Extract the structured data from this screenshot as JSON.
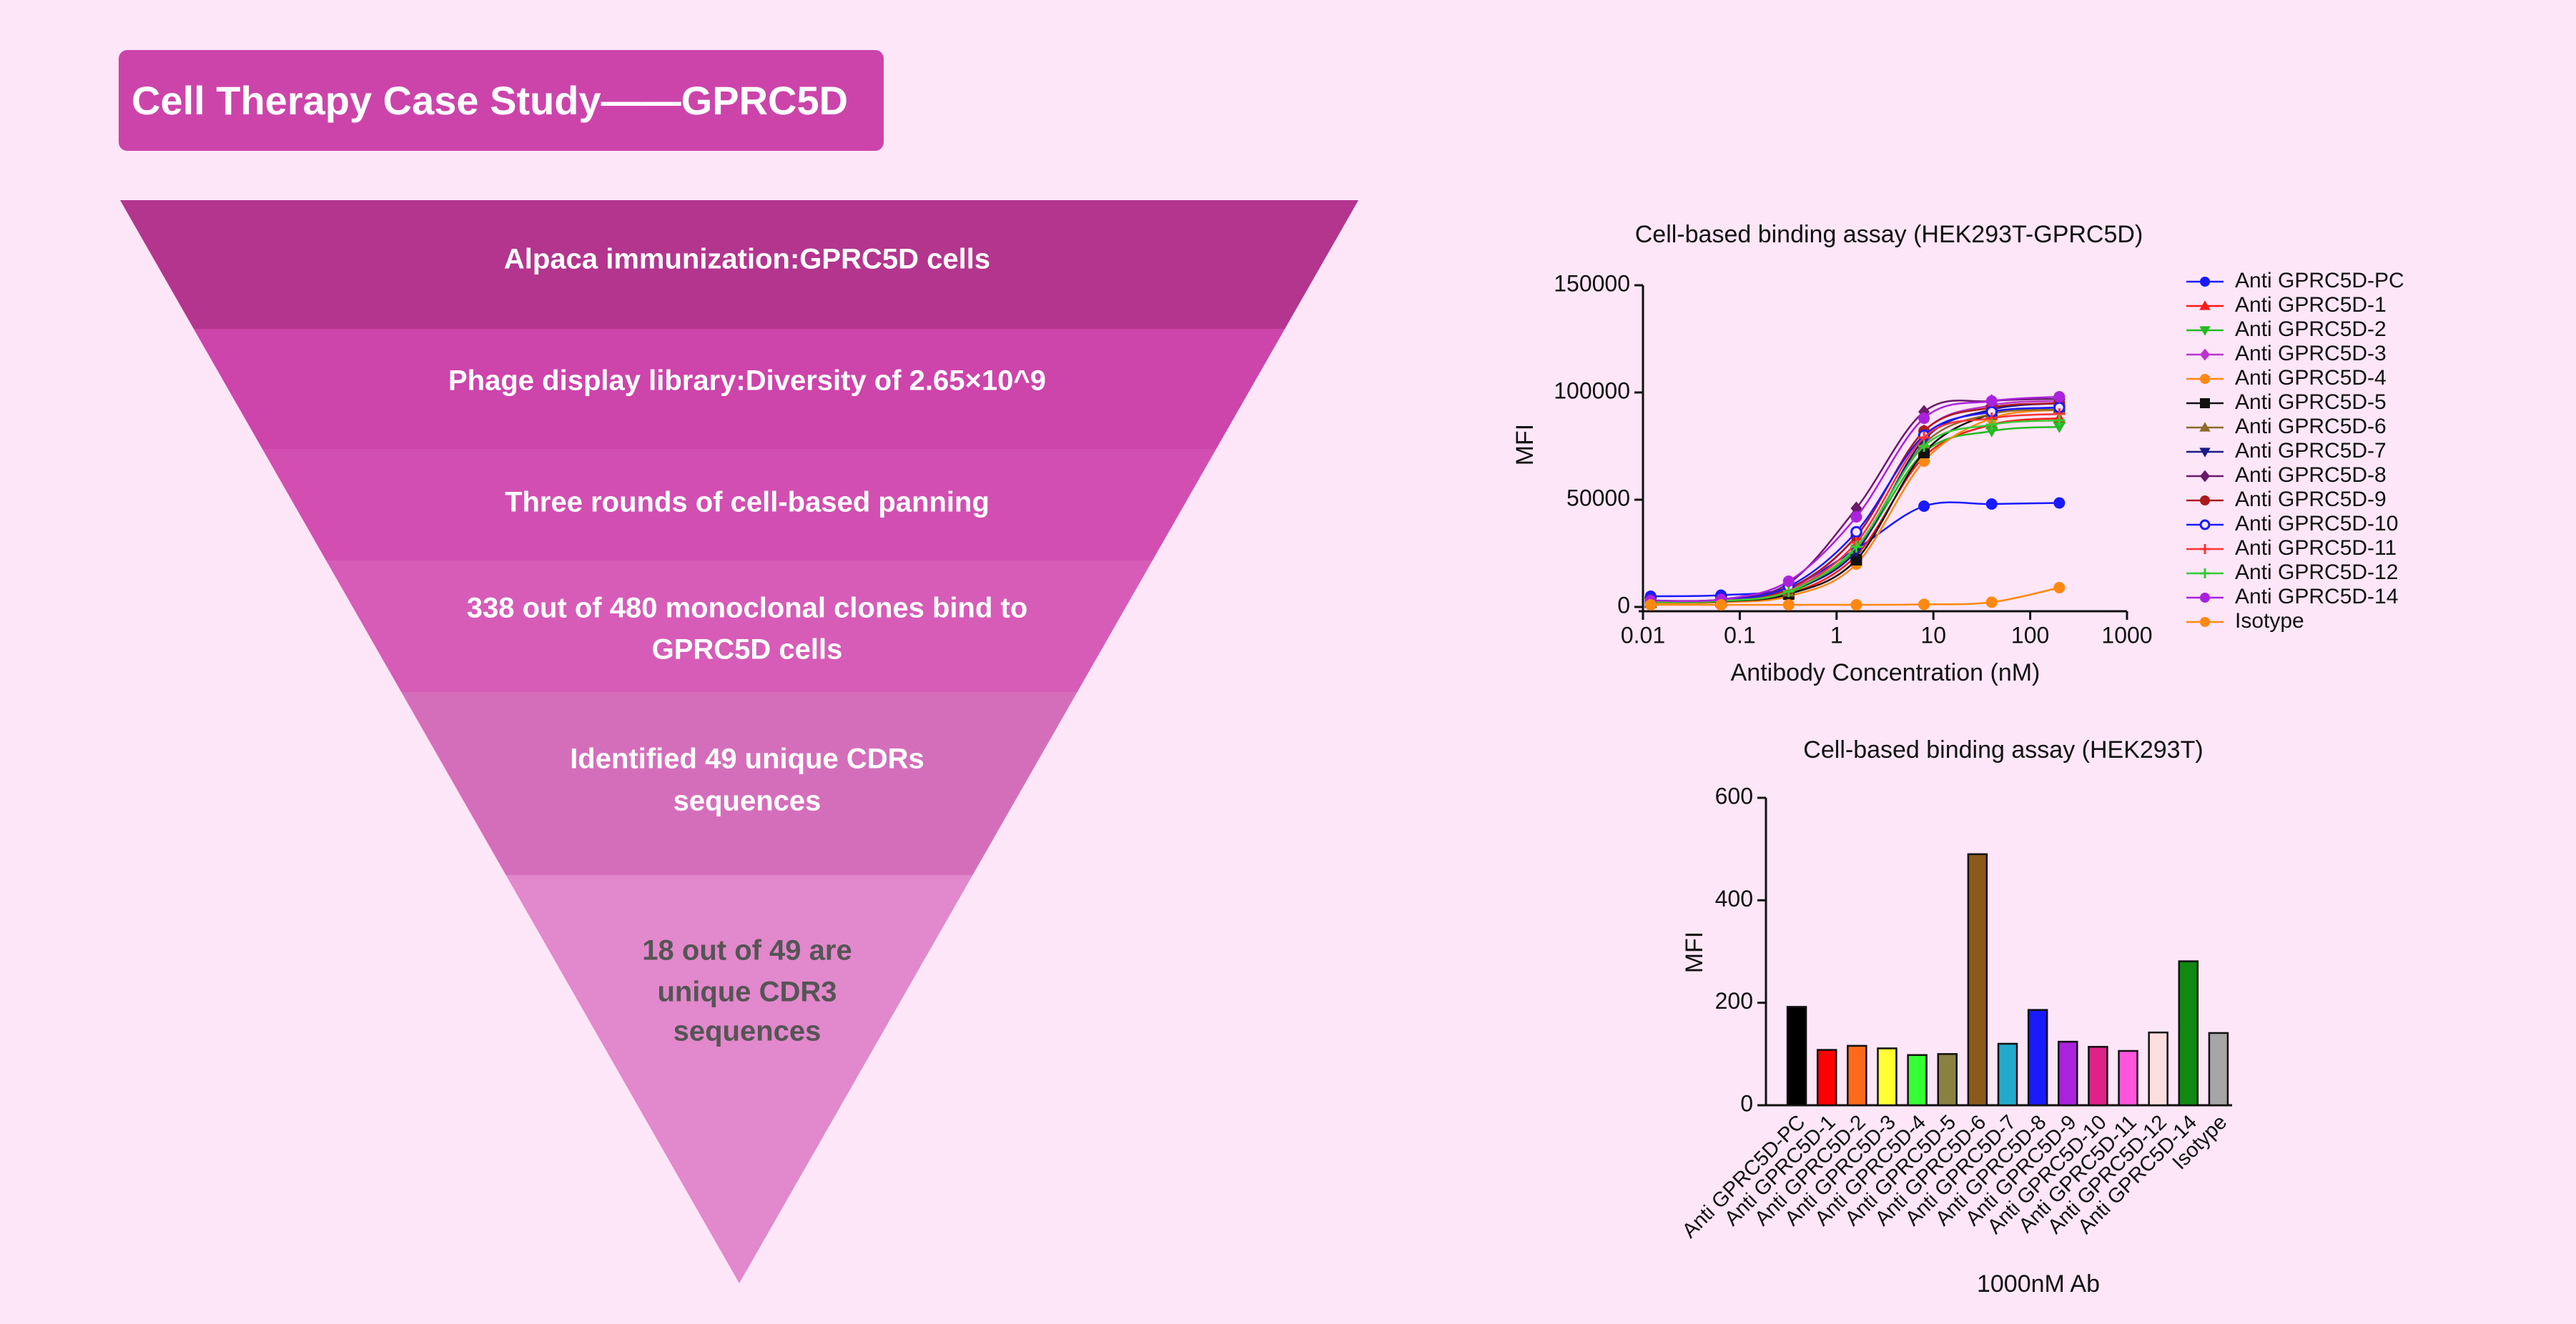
{
  "page_title": "Cell Therapy Case Study——GPRC5D",
  "funnel": {
    "steps": [
      {
        "lines": [
          "Alpaca immunization:GPRC5D cells"
        ],
        "color": "#b4358e",
        "text_color": "#ffffff"
      },
      {
        "lines": [
          "Phage display library:Diversity of 2.65×10^9"
        ],
        "color": "#cd44ab",
        "text_color": "#ffffff"
      },
      {
        "lines": [
          "Three rounds of cell-based panning"
        ],
        "color": "#d24fb1",
        "text_color": "#ffffff"
      },
      {
        "lines": [
          "338 out of 480 monoclonal clones bind to",
          "GPRC5D cells"
        ],
        "color": "#d65cb7",
        "text_color": "#ffffff"
      },
      {
        "lines": [
          "Identified 49 unique CDRs",
          "sequences"
        ],
        "color": "#d56eba",
        "text_color": "#ffffff"
      },
      {
        "lines": [
          "18 out of 49 are",
          "unique CDR3",
          "sequences"
        ],
        "color": "#e288cc",
        "text_color": "#555555"
      }
    ]
  },
  "chart_data": [
    {
      "type": "line",
      "title": "Cell-based binding assay (HEK293T-GPRC5D)",
      "xlabel": "Antibody Concentration (nM)",
      "ylabel": "MFI",
      "xscale": "log",
      "xlim": [
        0.01,
        1000
      ],
      "ylim": [
        0,
        150000
      ],
      "xticks": [
        "0.01",
        "0.1",
        "1",
        "10",
        "100",
        "1000"
      ],
      "yticks": [
        "0",
        "50000",
        "100000",
        "150000"
      ],
      "x": [
        0.012,
        0.064,
        0.32,
        1.6,
        8,
        40,
        200
      ],
      "legend_position": "right",
      "series": [
        {
          "name": "Anti GPRC5D-PC",
          "color": "#1a1aff",
          "marker": "circle",
          "values": [
            5000,
            5500,
            9000,
            27000,
            47000,
            48000,
            48500
          ]
        },
        {
          "name": "Anti GPRC5D-1",
          "color": "#ff1a1a",
          "marker": "triangle-up",
          "values": [
            2000,
            2500,
            6000,
            24000,
            70000,
            85000,
            88000
          ]
        },
        {
          "name": "Anti GPRC5D-2",
          "color": "#22bb22",
          "marker": "triangle-down",
          "values": [
            2000,
            2600,
            6500,
            27000,
            72000,
            82000,
            84000
          ]
        },
        {
          "name": "Anti GPRC5D-3",
          "color": "#bb33cc",
          "marker": "diamond",
          "values": [
            2500,
            3000,
            8000,
            33000,
            82000,
            94000,
            96000
          ]
        },
        {
          "name": "Anti GPRC5D-4",
          "color": "#ff8811",
          "marker": "circle",
          "values": [
            1800,
            2200,
            5000,
            20000,
            68000,
            88000,
            92000
          ]
        },
        {
          "name": "Anti GPRC5D-5",
          "color": "#111111",
          "marker": "square",
          "values": [
            2200,
            2600,
            6000,
            22000,
            72000,
            90000,
            93000
          ]
        },
        {
          "name": "Anti GPRC5D-6",
          "color": "#8b6a2a",
          "marker": "triangle-up",
          "values": [
            2300,
            2800,
            7000,
            28000,
            76000,
            90000,
            92000
          ]
        },
        {
          "name": "Anti GPRC5D-7",
          "color": "#1a1a88",
          "marker": "triangle-down",
          "values": [
            2400,
            3000,
            7500,
            26000,
            78000,
            92000,
            95000
          ]
        },
        {
          "name": "Anti GPRC5D-8",
          "color": "#6a1a6a",
          "marker": "diamond",
          "values": [
            3000,
            3500,
            11000,
            46000,
            91000,
            96000,
            97000
          ]
        },
        {
          "name": "Anti GPRC5D-9",
          "color": "#aa1a1a",
          "marker": "circle",
          "values": [
            2600,
            3100,
            8500,
            33000,
            82000,
            93000,
            95000
          ]
        },
        {
          "name": "Anti GPRC5D-10",
          "color": "#1a1aff",
          "marker": "circle-open",
          "values": [
            2500,
            3000,
            9500,
            35000,
            80000,
            91000,
            93000
          ]
        },
        {
          "name": "Anti GPRC5D-11",
          "color": "#ff3333",
          "marker": "plus",
          "values": [
            2400,
            2900,
            7500,
            30000,
            79000,
            88000,
            90000
          ]
        },
        {
          "name": "Anti GPRC5D-12",
          "color": "#33cc33",
          "marker": "plus",
          "values": [
            2300,
            2800,
            7200,
            28000,
            75000,
            85000,
            87000
          ]
        },
        {
          "name": "Anti GPRC5D-14",
          "color": "#aa22dd",
          "marker": "circle",
          "values": [
            3000,
            3500,
            12000,
            42000,
            88000,
            96000,
            98000
          ]
        },
        {
          "name": "Isotype",
          "color": "#ff8811",
          "marker": "circle",
          "values": [
            1000,
            1000,
            1000,
            1000,
            1200,
            2200,
            9000
          ]
        }
      ]
    },
    {
      "type": "bar",
      "title": "Cell-based binding assay (HEK293T)",
      "xlabel": "1000nM Ab",
      "ylabel": "MFI",
      "ylim": [
        0,
        600
      ],
      "yticks": [
        "0",
        "200",
        "400",
        "600"
      ],
      "categories": [
        "Anti GPRC5D-PC",
        "Anti GPRC5D-1",
        "Anti GPRC5D-2",
        "Anti GPRC5D-3",
        "Anti GPRC5D-4",
        "Anti GPRC5D-5",
        "Anti GPRC5D-6",
        "Anti GPRC5D-7",
        "Anti GPRC5D-8",
        "Anti GPRC5D-9",
        "Anti GPRC5D-10",
        "Anti GPRC5D-11",
        "Anti GPRC5D-12",
        "Anti GPRC5D-14",
        "Isotype"
      ],
      "values": [
        192,
        108,
        116,
        111,
        98,
        100,
        490,
        120,
        186,
        124,
        114,
        106,
        142,
        281,
        141
      ],
      "colors": [
        "#000000",
        "#ff0000",
        "#ff6a1a",
        "#ffff33",
        "#33ff33",
        "#8a8040",
        "#8b5a1a",
        "#22aacc",
        "#1a1aff",
        "#aa22dd",
        "#dd2288",
        "#ff55dd",
        "#fcdede",
        "#118811",
        "#a6a6a6"
      ]
    }
  ]
}
